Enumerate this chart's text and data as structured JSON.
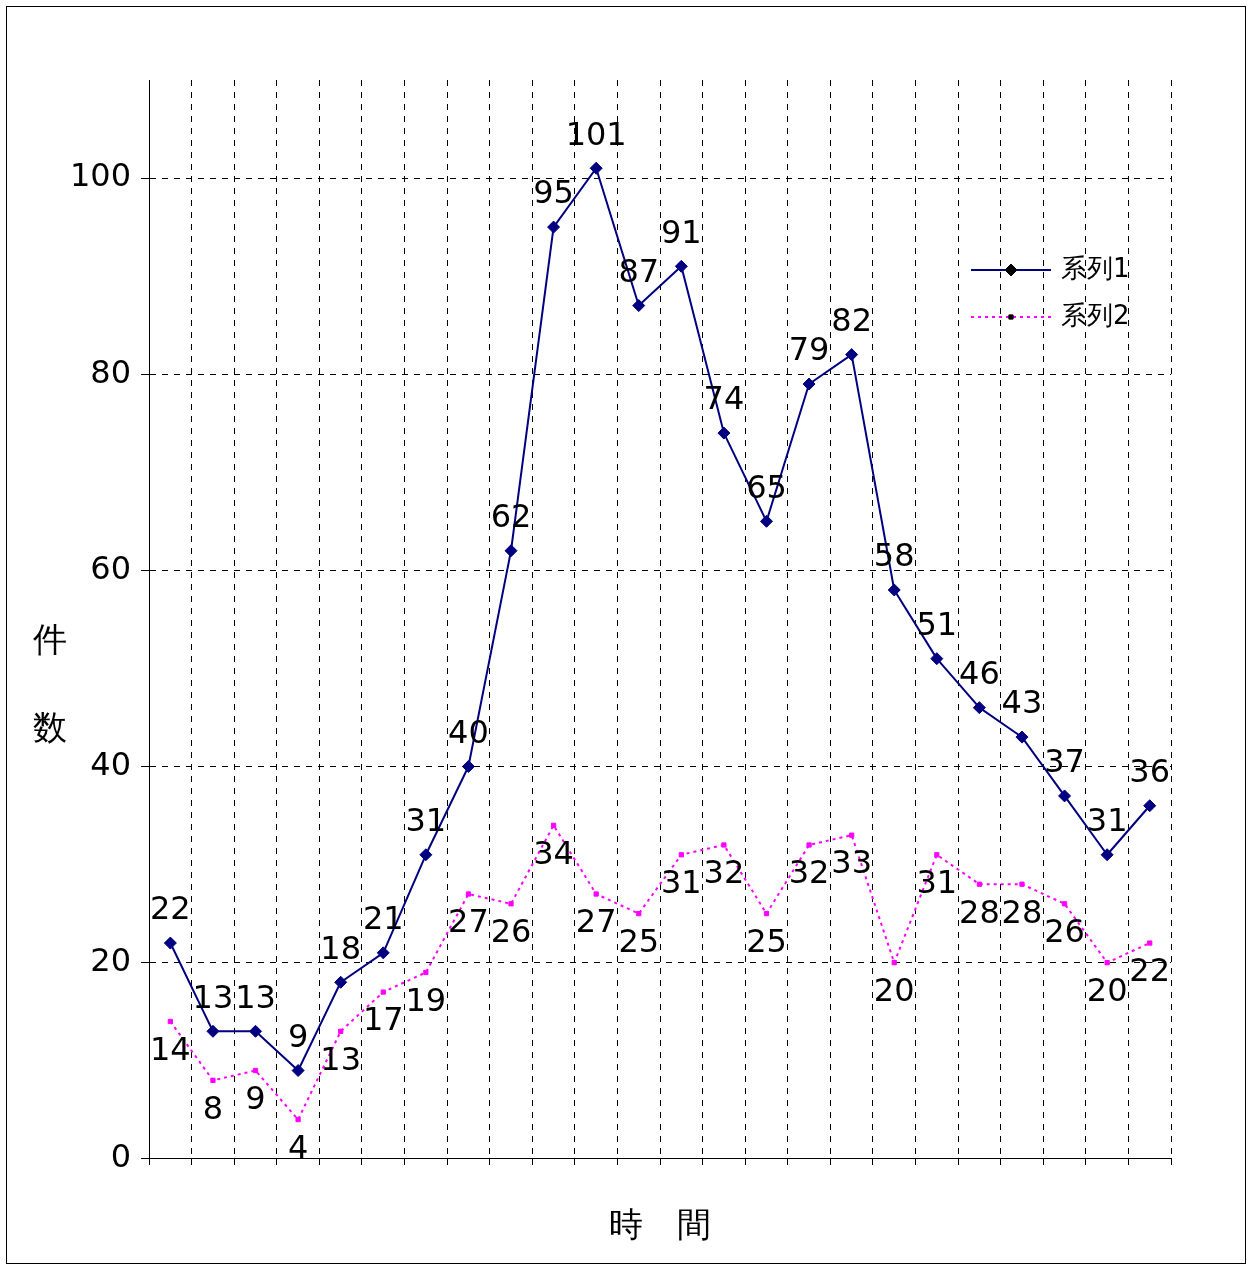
{
  "chart_data": {
    "type": "line",
    "xlabel": "時　間",
    "ylabel": "件数",
    "categories": [
      null,
      null,
      null,
      null,
      null,
      null,
      null,
      null,
      null,
      null,
      null,
      null,
      null,
      null,
      null,
      null,
      null,
      null,
      null,
      null,
      null,
      null,
      null,
      null
    ],
    "series": [
      {
        "name": "系列1",
        "color": "#000080",
        "marker": "diamond",
        "line_style": "solid",
        "values": [
          22,
          13,
          13,
          9,
          18,
          21,
          31,
          40,
          62,
          95,
          101,
          87,
          91,
          74,
          65,
          79,
          82,
          58,
          51,
          46,
          43,
          37,
          31,
          36
        ]
      },
      {
        "name": "系列2",
        "color": "#ff00ff",
        "marker": "square",
        "line_style": "dotted",
        "values": [
          14,
          8,
          9,
          4,
          13,
          17,
          19,
          27,
          26,
          34,
          27,
          25,
          31,
          32,
          25,
          32,
          33,
          20,
          31,
          28,
          28,
          26,
          20,
          22
        ]
      }
    ],
    "ylim": [
      0,
      110
    ],
    "yticks": [
      0,
      20,
      40,
      60,
      80,
      100
    ],
    "grid": true,
    "legend": "top right",
    "data_labels": true
  }
}
